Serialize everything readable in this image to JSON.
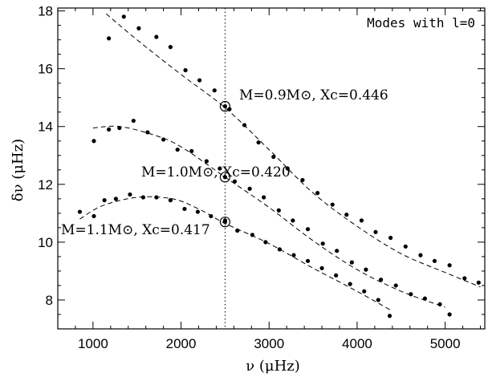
{
  "chart_data": {
    "type": "scatter",
    "title": "",
    "legend_text": "Modes with l=0",
    "legend_position": "top-right",
    "xlabel": "ν   (μHz)",
    "ylabel": "δν   (μHz)",
    "xlim": [
      600,
      5450
    ],
    "ylim": [
      7.0,
      18.1
    ],
    "xticks": [
      1000,
      2000,
      3000,
      4000,
      5000
    ],
    "yticks": [
      8,
      10,
      12,
      14,
      16,
      18
    ],
    "xtick_labels": [
      "1000",
      "2000",
      "3000",
      "4000",
      "5000"
    ],
    "ytick_labels": [
      "8",
      "10",
      "12",
      "14",
      "16",
      "18"
    ],
    "grid": false,
    "reference_line": {
      "x": 2500,
      "style": "dotted"
    },
    "series": [
      {
        "label": "M=0.9M⊙, Xc=0.446",
        "points": [
          [
            1180,
            17.05
          ],
          [
            1350,
            17.8
          ],
          [
            1520,
            17.4
          ],
          [
            1720,
            17.1
          ],
          [
            1880,
            16.75
          ],
          [
            2050,
            15.95
          ],
          [
            2210,
            15.6
          ],
          [
            2380,
            15.25
          ],
          [
            2550,
            14.6
          ],
          [
            2720,
            14.05
          ],
          [
            2880,
            13.45
          ],
          [
            3050,
            12.95
          ],
          [
            3210,
            12.55
          ],
          [
            3380,
            12.15
          ],
          [
            3550,
            11.7
          ],
          [
            3720,
            11.3
          ],
          [
            3880,
            10.95
          ],
          [
            4050,
            10.75
          ],
          [
            4210,
            10.35
          ],
          [
            4380,
            10.15
          ],
          [
            4550,
            9.85
          ],
          [
            4720,
            9.55
          ],
          [
            4880,
            9.35
          ],
          [
            5050,
            9.2
          ],
          [
            5220,
            8.75
          ],
          [
            5380,
            8.6
          ]
        ],
        "model_curve": [
          [
            1150,
            17.9
          ],
          [
            1500,
            17.0
          ],
          [
            2000,
            15.8
          ],
          [
            2500,
            14.65
          ],
          [
            3000,
            13.2
          ],
          [
            3500,
            11.7
          ],
          [
            4000,
            10.55
          ],
          [
            4500,
            9.6
          ],
          [
            5000,
            8.95
          ],
          [
            5400,
            8.45
          ]
        ],
        "marker_x": 2500,
        "marker_y": 14.7
      },
      {
        "label": "M=1.0M⊙, Xc=0.420",
        "points": [
          [
            1010,
            13.5
          ],
          [
            1180,
            13.9
          ],
          [
            1300,
            13.95
          ],
          [
            1460,
            14.2
          ],
          [
            1620,
            13.8
          ],
          [
            1800,
            13.55
          ],
          [
            1960,
            13.2
          ],
          [
            2120,
            13.15
          ],
          [
            2290,
            12.8
          ],
          [
            2440,
            12.55
          ],
          [
            2610,
            12.1
          ],
          [
            2780,
            11.85
          ],
          [
            2940,
            11.55
          ],
          [
            3110,
            11.1
          ],
          [
            3270,
            10.75
          ],
          [
            3440,
            10.45
          ],
          [
            3610,
            9.95
          ],
          [
            3770,
            9.7
          ],
          [
            3940,
            9.3
          ],
          [
            4100,
            9.05
          ],
          [
            4270,
            8.7
          ],
          [
            4440,
            8.5
          ],
          [
            4610,
            8.2
          ],
          [
            4770,
            8.05
          ],
          [
            4940,
            7.85
          ],
          [
            5050,
            7.5
          ]
        ],
        "model_curve": [
          [
            1000,
            13.95
          ],
          [
            1300,
            14.0
          ],
          [
            1700,
            13.7
          ],
          [
            2000,
            13.3
          ],
          [
            2500,
            12.25
          ],
          [
            3000,
            11.2
          ],
          [
            3500,
            10.05
          ],
          [
            4000,
            9.05
          ],
          [
            4500,
            8.3
          ],
          [
            5000,
            7.75
          ]
        ],
        "marker_x": 2500,
        "marker_y": 12.25
      },
      {
        "label": "M=1.1M⊙, Xc=0.417",
        "points": [
          [
            850,
            11.05
          ],
          [
            1010,
            10.9
          ],
          [
            1130,
            11.45
          ],
          [
            1260,
            11.5
          ],
          [
            1420,
            11.65
          ],
          [
            1570,
            11.55
          ],
          [
            1720,
            11.55
          ],
          [
            1880,
            11.45
          ],
          [
            2040,
            11.15
          ],
          [
            2190,
            11.05
          ],
          [
            2340,
            10.9
          ],
          [
            2500,
            10.75
          ],
          [
            2640,
            10.4
          ],
          [
            2810,
            10.25
          ],
          [
            2960,
            10.0
          ],
          [
            3120,
            9.75
          ],
          [
            3280,
            9.55
          ],
          [
            3440,
            9.35
          ],
          [
            3600,
            9.1
          ],
          [
            3760,
            8.85
          ],
          [
            3920,
            8.55
          ],
          [
            4080,
            8.3
          ],
          [
            4240,
            8.0
          ],
          [
            4370,
            7.45
          ]
        ],
        "model_curve": [
          [
            850,
            10.8
          ],
          [
            1100,
            11.25
          ],
          [
            1500,
            11.55
          ],
          [
            1900,
            11.5
          ],
          [
            2200,
            11.15
          ],
          [
            2500,
            10.65
          ],
          [
            3000,
            9.95
          ],
          [
            3500,
            9.1
          ],
          [
            4000,
            8.3
          ],
          [
            4380,
            7.65
          ]
        ],
        "marker_x": 2500,
        "marker_y": 10.7
      }
    ]
  }
}
